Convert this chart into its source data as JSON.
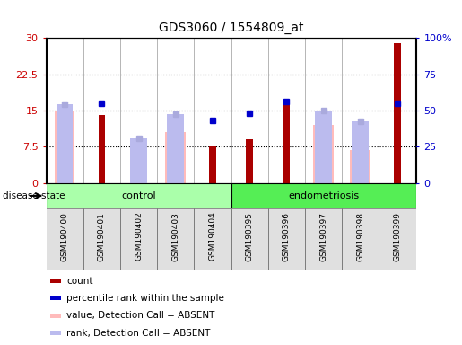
{
  "title": "GDS3060 / 1554809_at",
  "samples": [
    "GSM190400",
    "GSM190401",
    "GSM190402",
    "GSM190403",
    "GSM190404",
    "GSM190395",
    "GSM190396",
    "GSM190397",
    "GSM190398",
    "GSM190399"
  ],
  "groups": [
    "control",
    "control",
    "control",
    "control",
    "control",
    "endometriosis",
    "endometriosis",
    "endometriosis",
    "endometriosis",
    "endometriosis"
  ],
  "count_values": [
    null,
    14.0,
    null,
    null,
    7.5,
    9.0,
    17.0,
    null,
    null,
    29.0
  ],
  "percentile_rank_left": [
    null,
    16.5,
    null,
    null,
    13.0,
    14.5,
    16.8,
    null,
    null,
    16.5
  ],
  "rank_absent_left": [
    16.3,
    null,
    9.3,
    14.3,
    null,
    null,
    null,
    15.0,
    12.8,
    null
  ],
  "value_absent_left": [
    14.9,
    null,
    null,
    10.5,
    null,
    null,
    null,
    12.0,
    6.8,
    null
  ],
  "ylim_left": [
    0,
    30
  ],
  "yticks_left": [
    0,
    7.5,
    15,
    22.5,
    30
  ],
  "ytick_labels_left": [
    "0",
    "7.5",
    "15",
    "22.5",
    "30"
  ],
  "yticks_right": [
    0,
    25,
    50,
    75,
    100
  ],
  "ytick_labels_right": [
    "0",
    "25",
    "50",
    "75",
    "100%"
  ],
  "left_axis_color": "#cc0000",
  "right_axis_color": "#0000cc",
  "bar_color_count": "#aa0000",
  "bar_color_value_absent": "#ffbbbb",
  "bar_color_rank_absent": "#bbbbee",
  "dot_color_percentile": "#0000cc",
  "dot_color_rank_absent": "#aaaadd",
  "control_light": "#ccffcc",
  "control_dark": "#66ee66",
  "endometriosis_light": "#66ee66",
  "endometriosis_dark": "#44cc44",
  "sample_bg": "#e0e0e0",
  "grid_color": "black",
  "plot_bg": "white",
  "legend_items": [
    {
      "label": "count",
      "color": "#aa0000"
    },
    {
      "label": "percentile rank within the sample",
      "color": "#0000cc"
    },
    {
      "label": "value, Detection Call = ABSENT",
      "color": "#ffbbbb"
    },
    {
      "label": "rank, Detection Call = ABSENT",
      "color": "#bbbbee"
    }
  ]
}
